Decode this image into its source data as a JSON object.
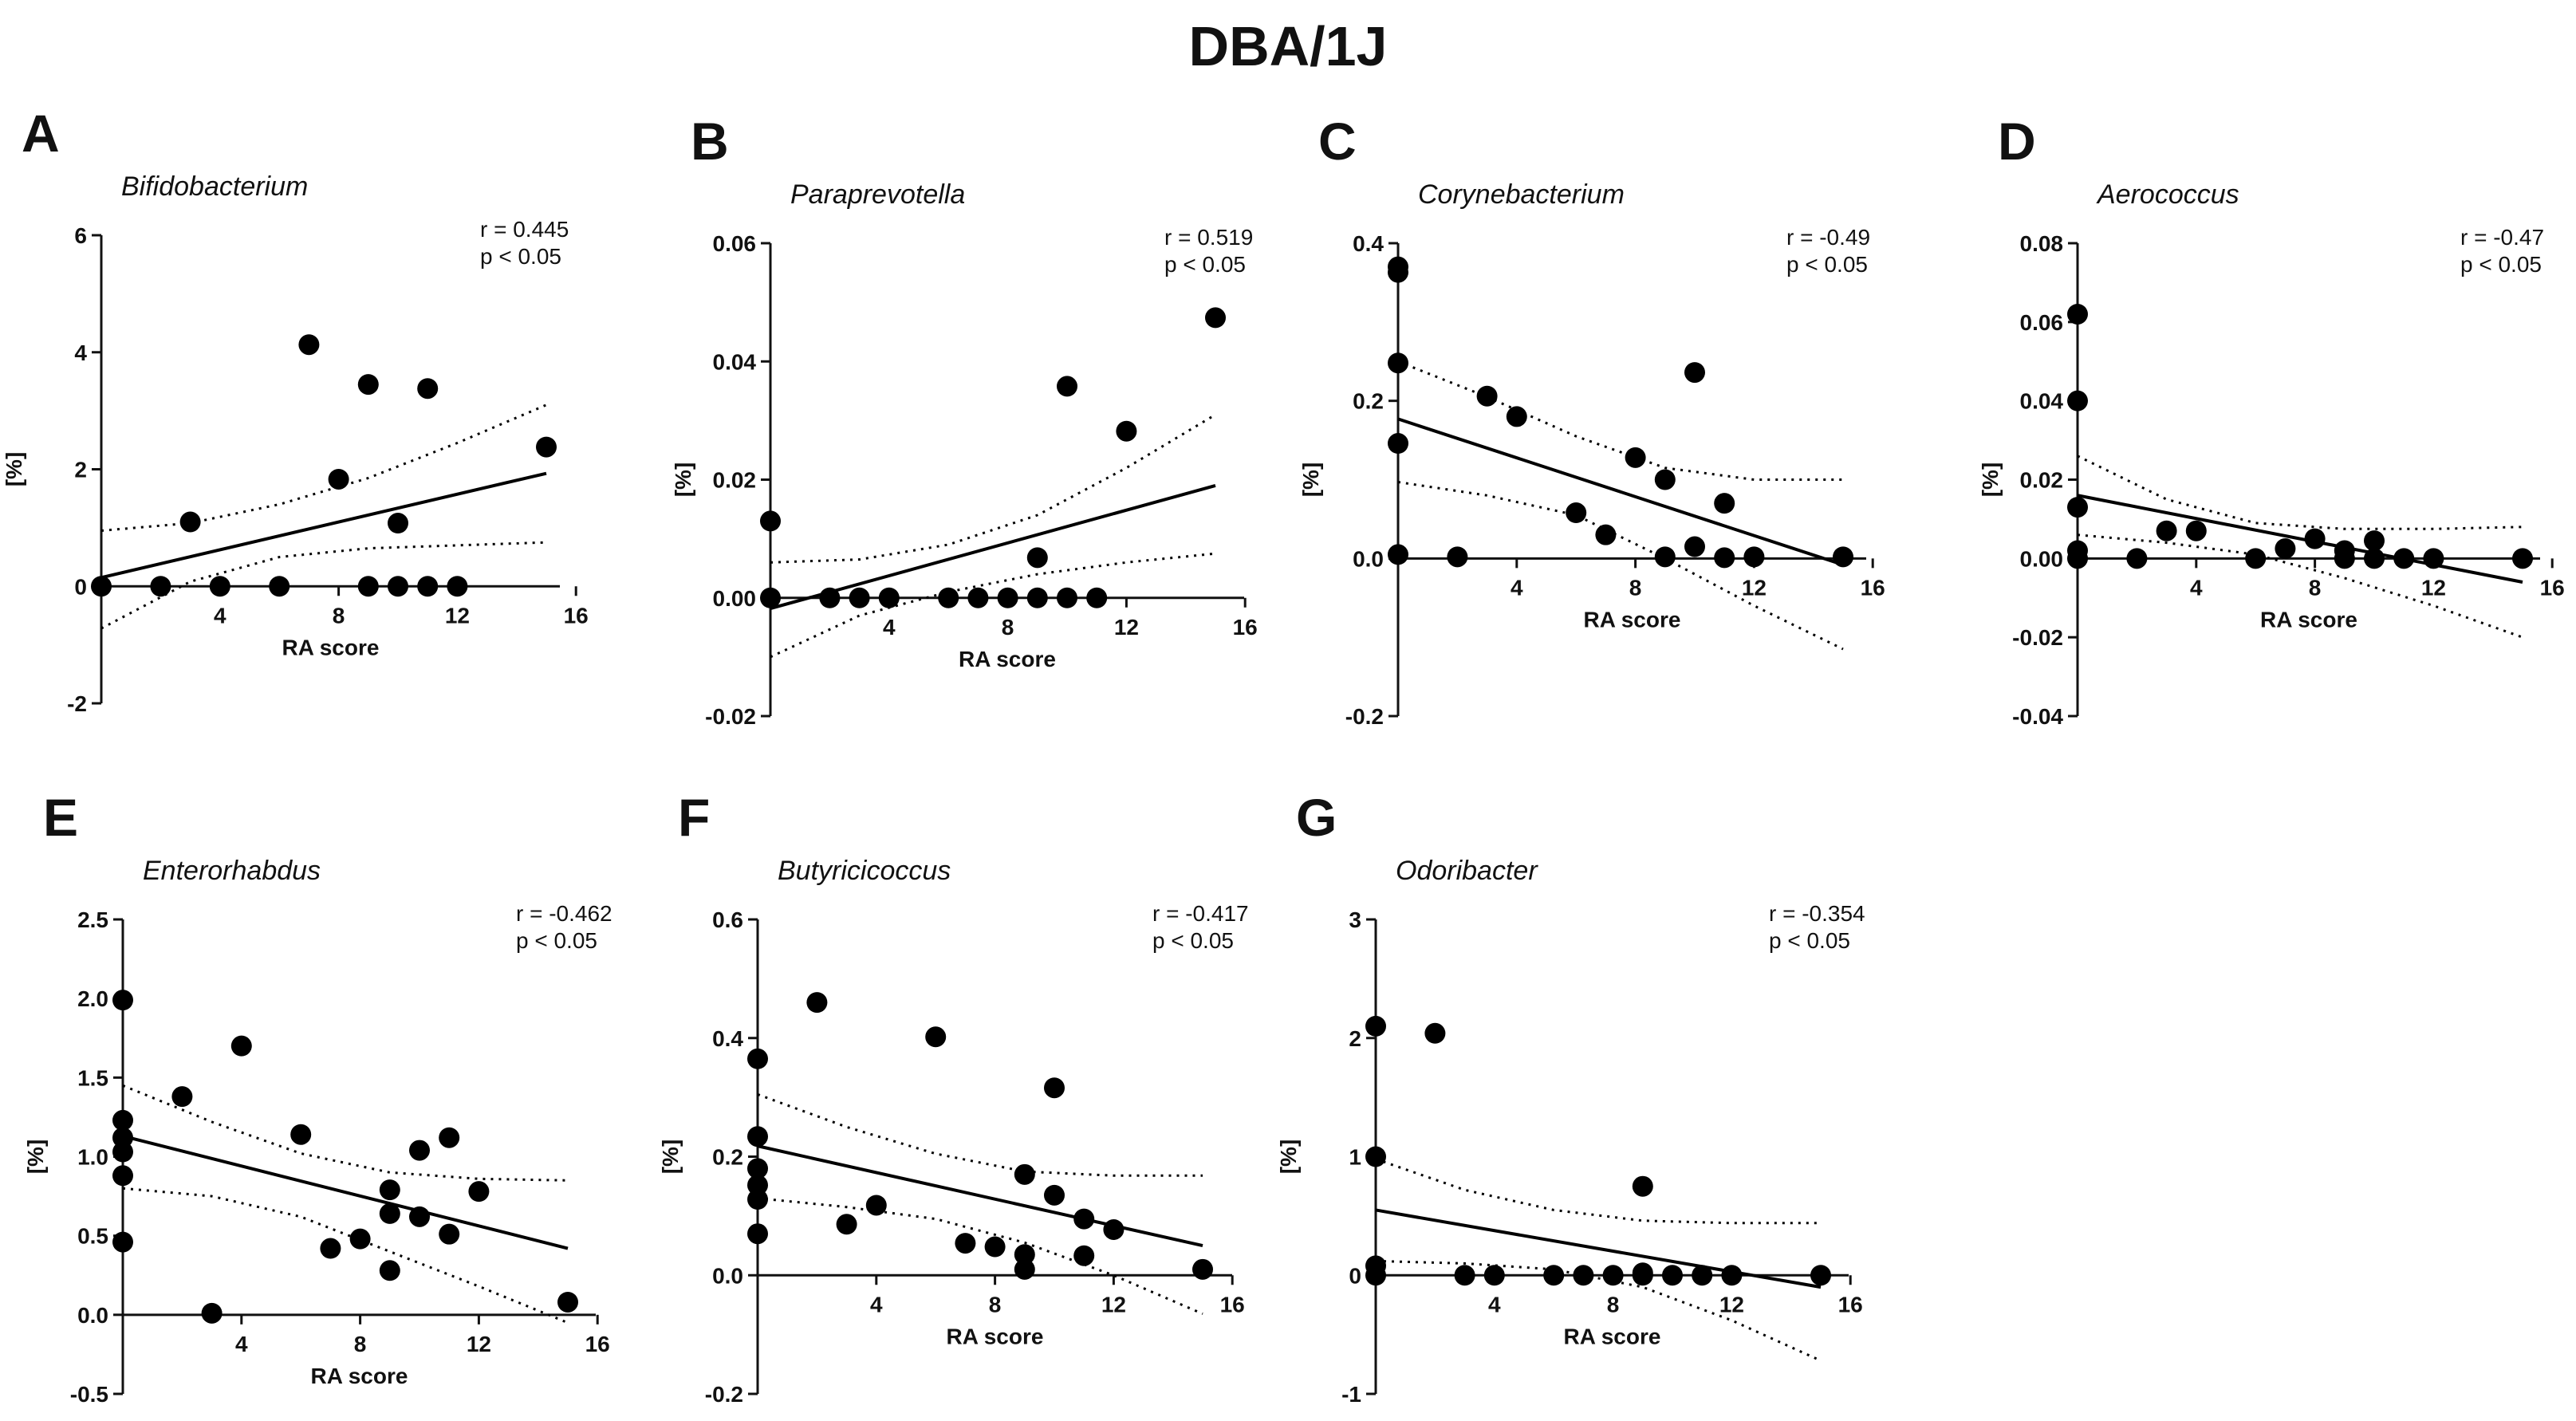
{
  "figure": {
    "title": "DBA/1J"
  },
  "charts": [
    {
      "id": "A",
      "letter": "A",
      "title": "Bifidobacterium",
      "stats": [
        "r = 0.445",
        "p < 0.05"
      ],
      "xlabel": "RA score",
      "ylabel": "[%]",
      "chart_data": {
        "type": "scatter",
        "xlim": [
          0,
          16
        ],
        "ylim": [
          -2,
          6
        ],
        "xticks": [
          4,
          8,
          12,
          16
        ],
        "yticks": [
          -2,
          0,
          2,
          4,
          6
        ],
        "ytick_labels": [
          "-2",
          "0",
          "2",
          "4",
          "6"
        ],
        "points": [
          [
            0,
            0
          ],
          [
            2,
            0
          ],
          [
            3,
            1.1
          ],
          [
            4,
            0
          ],
          [
            6,
            0
          ],
          [
            7,
            4.13
          ],
          [
            8,
            1.83
          ],
          [
            9,
            3.45
          ],
          [
            9,
            0
          ],
          [
            10,
            1.08
          ],
          [
            10,
            0
          ],
          [
            11,
            3.38
          ],
          [
            11,
            0
          ],
          [
            12,
            0
          ],
          [
            15,
            2.38
          ]
        ],
        "fit": [
          [
            0,
            0.15
          ],
          [
            15,
            1.93
          ]
        ],
        "ci_upper": [
          [
            0,
            0.95
          ],
          [
            3,
            1.08
          ],
          [
            6,
            1.4
          ],
          [
            9,
            1.85
          ],
          [
            12,
            2.45
          ],
          [
            15,
            3.1
          ]
        ],
        "ci_lower": [
          [
            0,
            -0.72
          ],
          [
            3,
            0.08
          ],
          [
            6,
            0.5
          ],
          [
            9,
            0.65
          ],
          [
            12,
            0.7
          ],
          [
            15,
            0.75
          ]
        ]
      }
    },
    {
      "id": "B",
      "letter": "B",
      "title": "Paraprevotella",
      "stats": [
        "r = 0.519",
        "p < 0.05"
      ],
      "xlabel": "RA score",
      "ylabel": "[%]",
      "chart_data": {
        "type": "scatter",
        "xlim": [
          0,
          16
        ],
        "ylim": [
          -0.02,
          0.06
        ],
        "xticks": [
          4,
          8,
          12,
          16
        ],
        "yticks": [
          -0.02,
          0,
          0.02,
          0.04,
          0.06
        ],
        "ytick_labels": [
          "-0.02",
          "0.00",
          "0.02",
          "0.04",
          "0.06"
        ],
        "points": [
          [
            0,
            0.013
          ],
          [
            0,
            0
          ],
          [
            2,
            0
          ],
          [
            3,
            0
          ],
          [
            4,
            0
          ],
          [
            6,
            0
          ],
          [
            7,
            0
          ],
          [
            8,
            0
          ],
          [
            9,
            0.0068
          ],
          [
            9,
            0
          ],
          [
            10,
            0.0358
          ],
          [
            10,
            0
          ],
          [
            11,
            0
          ],
          [
            12,
            0.0282
          ],
          [
            15,
            0.0474
          ]
        ],
        "fit": [
          [
            0,
            -0.0018
          ],
          [
            15,
            0.019
          ]
        ],
        "ci_upper": [
          [
            0,
            0.006
          ],
          [
            3,
            0.0065
          ],
          [
            6,
            0.009
          ],
          [
            9,
            0.014
          ],
          [
            12,
            0.022
          ],
          [
            15,
            0.031
          ]
        ],
        "ci_lower": [
          [
            0,
            -0.01
          ],
          [
            3,
            -0.003
          ],
          [
            6,
            0.001
          ],
          [
            9,
            0.004
          ],
          [
            12,
            0.006
          ],
          [
            15,
            0.0075
          ]
        ]
      }
    },
    {
      "id": "C",
      "letter": "C",
      "title": "Corynebacterium",
      "stats": [
        "r = -0.49",
        "p < 0.05"
      ],
      "xlabel": "RA score",
      "ylabel": "[%]",
      "chart_data": {
        "type": "scatter",
        "xlim": [
          0,
          16
        ],
        "ylim": [
          -0.2,
          0.4
        ],
        "xticks": [
          4,
          8,
          12,
          16
        ],
        "yticks": [
          -0.2,
          0,
          0.2,
          0.4
        ],
        "ytick_labels": [
          "-0.2",
          "0.0",
          "0.2",
          "0.4"
        ],
        "points": [
          [
            0,
            0.37
          ],
          [
            0,
            0.363
          ],
          [
            0,
            0.248
          ],
          [
            0,
            0.146
          ],
          [
            0,
            0.005
          ],
          [
            2,
            0.002
          ],
          [
            3,
            0.206
          ],
          [
            4,
            0.18
          ],
          [
            6,
            0.058
          ],
          [
            7,
            0.03
          ],
          [
            8,
            0.128
          ],
          [
            9,
            0.1
          ],
          [
            9,
            0.002
          ],
          [
            10,
            0.236
          ],
          [
            10,
            0.015
          ],
          [
            11,
            0.07
          ],
          [
            11,
            0.001
          ],
          [
            12,
            0.002
          ],
          [
            15,
            0.002
          ]
        ],
        "fit": [
          [
            0,
            0.177
          ],
          [
            15,
            -0.008
          ]
        ],
        "ci_upper": [
          [
            0,
            0.25
          ],
          [
            3,
            0.205
          ],
          [
            6,
            0.155
          ],
          [
            9,
            0.115
          ],
          [
            12,
            0.1
          ],
          [
            15,
            0.1
          ]
        ],
        "ci_lower": [
          [
            0,
            0.097
          ],
          [
            3,
            0.08
          ],
          [
            6,
            0.055
          ],
          [
            9,
            0.0
          ],
          [
            12,
            -0.06
          ],
          [
            15,
            -0.115
          ]
        ]
      }
    },
    {
      "id": "D",
      "letter": "D",
      "title": "Aerococcus",
      "stats": [
        "r = -0.47",
        "p < 0.05"
      ],
      "xlabel": "RA score",
      "ylabel": "[%]",
      "chart_data": {
        "type": "scatter",
        "xlim": [
          0,
          16
        ],
        "ylim": [
          -0.04,
          0.08
        ],
        "xticks": [
          4,
          8,
          12,
          16
        ],
        "yticks": [
          -0.04,
          -0.02,
          0,
          0.02,
          0.04,
          0.06,
          0.08
        ],
        "ytick_labels": [
          "-0.04",
          "-0.02",
          "0.00",
          "0.02",
          "0.04",
          "0.06",
          "0.08"
        ],
        "points": [
          [
            0,
            0.062
          ],
          [
            0,
            0.04
          ],
          [
            0,
            0.013
          ],
          [
            0,
            0.002
          ],
          [
            0,
            0
          ],
          [
            2,
            0
          ],
          [
            3,
            0.007
          ],
          [
            4,
            0.007
          ],
          [
            6,
            0
          ],
          [
            7,
            0.0025
          ],
          [
            8,
            0.005
          ],
          [
            9,
            0.002
          ],
          [
            9,
            0
          ],
          [
            10,
            0.0045
          ],
          [
            10,
            0
          ],
          [
            11,
            0
          ],
          [
            12,
            0
          ],
          [
            15,
            0
          ]
        ],
        "fit": [
          [
            0,
            0.016
          ],
          [
            15,
            -0.006
          ]
        ],
        "ci_upper": [
          [
            0,
            0.026
          ],
          [
            3,
            0.015
          ],
          [
            6,
            0.009
          ],
          [
            9,
            0.0075
          ],
          [
            12,
            0.0075
          ],
          [
            15,
            0.008
          ]
        ],
        "ci_lower": [
          [
            0,
            0.006
          ],
          [
            3,
            0.004
          ],
          [
            6,
            0.001
          ],
          [
            9,
            -0.005
          ],
          [
            12,
            -0.012
          ],
          [
            15,
            -0.02
          ]
        ]
      }
    },
    {
      "id": "E",
      "letter": "E",
      "title": "Enterorhabdus",
      "stats": [
        "r = -0.462",
        "p < 0.05"
      ],
      "xlabel": "RA score",
      "ylabel": "[%]",
      "chart_data": {
        "type": "scatter",
        "xlim": [
          0,
          16
        ],
        "ylim": [
          -0.5,
          2.5
        ],
        "xticks": [
          4,
          8,
          12,
          16
        ],
        "yticks": [
          -0.5,
          0,
          0.5,
          1,
          1.5,
          2,
          2.5
        ],
        "ytick_labels": [
          "-0.5",
          "0.0",
          "0.5",
          "1.0",
          "1.5",
          "2.0",
          "2.5"
        ],
        "points": [
          [
            0,
            1.99
          ],
          [
            0,
            1.23
          ],
          [
            0,
            1.12
          ],
          [
            0,
            1.03
          ],
          [
            0,
            0.88
          ],
          [
            0,
            0.46
          ],
          [
            2,
            1.38
          ],
          [
            3,
            0.01
          ],
          [
            4,
            1.7
          ],
          [
            6,
            1.14
          ],
          [
            7,
            0.42
          ],
          [
            8,
            0.48
          ],
          [
            9,
            0.79
          ],
          [
            9,
            0.64
          ],
          [
            9,
            0.28
          ],
          [
            10,
            1.04
          ],
          [
            10,
            0.62
          ],
          [
            11,
            1.12
          ],
          [
            11,
            0.51
          ],
          [
            12,
            0.78
          ],
          [
            15,
            0.08
          ]
        ],
        "fit": [
          [
            0,
            1.13
          ],
          [
            15,
            0.42
          ]
        ],
        "ci_upper": [
          [
            0,
            1.45
          ],
          [
            3,
            1.22
          ],
          [
            6,
            1.02
          ],
          [
            9,
            0.9
          ],
          [
            12,
            0.86
          ],
          [
            15,
            0.85
          ]
        ],
        "ci_lower": [
          [
            0,
            0.8
          ],
          [
            3,
            0.75
          ],
          [
            6,
            0.62
          ],
          [
            9,
            0.4
          ],
          [
            12,
            0.18
          ],
          [
            15,
            -0.05
          ]
        ]
      }
    },
    {
      "id": "F",
      "letter": "F",
      "title": "Butyricicoccus",
      "stats": [
        "r = -0.417",
        "p < 0.05"
      ],
      "xlabel": "RA score",
      "ylabel": "[%]",
      "chart_data": {
        "type": "scatter",
        "xlim": [
          0,
          16
        ],
        "ylim": [
          -0.2,
          0.6
        ],
        "xticks": [
          4,
          8,
          12,
          16
        ],
        "yticks": [
          -0.2,
          0,
          0.2,
          0.4,
          0.6
        ],
        "ytick_labels": [
          "-0.2",
          "0.0",
          "0.2",
          "0.4",
          "0.6"
        ],
        "points": [
          [
            0,
            0.365
          ],
          [
            0,
            0.234
          ],
          [
            0,
            0.18
          ],
          [
            0,
            0.152
          ],
          [
            0,
            0.128
          ],
          [
            0,
            0.07
          ],
          [
            2,
            0.46
          ],
          [
            3,
            0.086
          ],
          [
            4,
            0.118
          ],
          [
            6,
            0.402
          ],
          [
            7,
            0.054
          ],
          [
            8,
            0.048
          ],
          [
            9,
            0.17
          ],
          [
            9,
            0.035
          ],
          [
            9,
            0.01
          ],
          [
            10,
            0.316
          ],
          [
            10,
            0.135
          ],
          [
            11,
            0.095
          ],
          [
            11,
            0.033
          ],
          [
            12,
            0.077
          ],
          [
            15,
            0.01
          ]
        ],
        "fit": [
          [
            0,
            0.218
          ],
          [
            15,
            0.05
          ]
        ],
        "ci_upper": [
          [
            0,
            0.305
          ],
          [
            3,
            0.25
          ],
          [
            6,
            0.205
          ],
          [
            9,
            0.175
          ],
          [
            12,
            0.168
          ],
          [
            15,
            0.168
          ]
        ],
        "ci_lower": [
          [
            0,
            0.13
          ],
          [
            3,
            0.115
          ],
          [
            6,
            0.095
          ],
          [
            9,
            0.055
          ],
          [
            12,
            0.0
          ],
          [
            15,
            -0.065
          ]
        ]
      }
    },
    {
      "id": "G",
      "letter": "G",
      "title": "Odoribacter",
      "stats": [
        "r = -0.354",
        "p < 0.05"
      ],
      "xlabel": "RA score",
      "ylabel": "[%]",
      "chart_data": {
        "type": "scatter",
        "xlim": [
          0,
          16
        ],
        "ylim": [
          -1,
          3
        ],
        "xticks": [
          4,
          8,
          12,
          16
        ],
        "yticks": [
          -1,
          0,
          1,
          2,
          3
        ],
        "ytick_labels": [
          "-1",
          "0",
          "1",
          "2",
          "3"
        ],
        "points": [
          [
            0,
            2.1
          ],
          [
            0,
            1.0
          ],
          [
            0,
            0.08
          ],
          [
            0,
            0
          ],
          [
            2,
            2.04
          ],
          [
            3,
            0
          ],
          [
            4,
            0
          ],
          [
            6,
            0
          ],
          [
            7,
            0
          ],
          [
            8,
            0
          ],
          [
            9,
            0.75
          ],
          [
            9,
            0.02
          ],
          [
            9,
            0
          ],
          [
            10,
            0
          ],
          [
            11,
            0
          ],
          [
            12,
            0
          ],
          [
            15,
            0
          ]
        ],
        "fit": [
          [
            0,
            0.55
          ],
          [
            15,
            -0.1
          ]
        ],
        "ci_upper": [
          [
            0,
            0.98
          ],
          [
            3,
            0.72
          ],
          [
            6,
            0.55
          ],
          [
            9,
            0.46
          ],
          [
            12,
            0.44
          ],
          [
            15,
            0.44
          ]
        ],
        "ci_lower": [
          [
            0,
            0.12
          ],
          [
            3,
            0.1
          ],
          [
            6,
            0.05
          ],
          [
            9,
            -0.1
          ],
          [
            12,
            -0.38
          ],
          [
            15,
            -0.72
          ]
        ]
      }
    }
  ]
}
